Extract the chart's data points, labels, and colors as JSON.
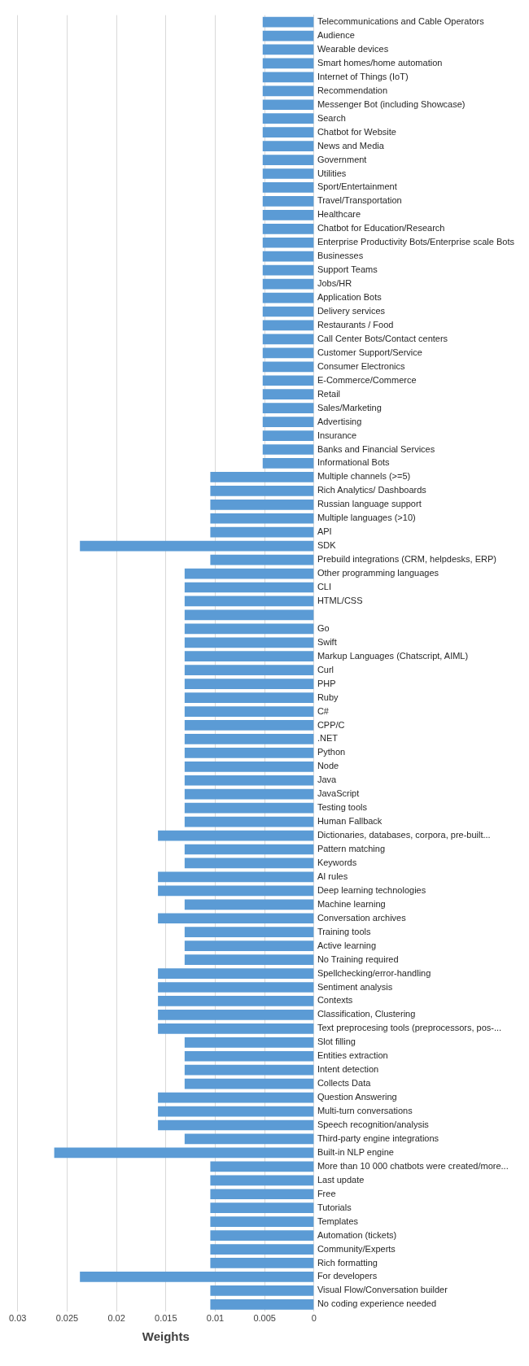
{
  "chart_data": {
    "type": "bar",
    "orientation": "horizontal",
    "xlabel": "Weights",
    "categories": [
      "Telecommunications and Cable Operators",
      "Audience",
      "Wearable devices",
      "Smart homes/home automation",
      "Internet of Things (IoT)",
      "Recommendation",
      "Messenger Bot (including Showcase)",
      "Search",
      "Chatbot for Website",
      "News and Media",
      "Government",
      "Utilities",
      "Sport/Entertainment",
      "Travel/Transportation",
      "Healthcare",
      "Chatbot for Education/Research",
      "Enterprise Productivity Bots/Enterprise scale Bots",
      "Businesses",
      "Support Teams",
      "Jobs/HR",
      "Application Bots",
      "Delivery services",
      "Restaurants / Food",
      "Call Center Bots/Contact centers",
      "Customer Support/Service",
      "Consumer Electronics",
      "E-Commerce/Commerce",
      "Retail",
      "Sales/Marketing",
      "Advertising",
      "Insurance",
      "Banks and Financial Services",
      "Informational Bots",
      "Multiple channels (>=5)",
      "Rich Analytics/ Dashboards",
      "Russian language support",
      "Multiple languages (>10)",
      "API",
      "SDK",
      "Prebuild integrations (CRM, helpdesks, ERP)",
      "Other programming languages",
      "CLI",
      "HTML/CSS",
      null,
      "Go",
      "Swift",
      "Markup Languages (Chatscript, AIML)",
      "Curl",
      "PHP",
      "Ruby",
      "C#",
      "CPP/C",
      ".NET",
      "Python",
      "Node",
      "Java",
      "JavaScript",
      "Testing tools",
      "Human Fallback",
      "Dictionaries, databases, corpora, pre-built...",
      "Pattern matching",
      "Keywords",
      "AI rules",
      "Deep learning technologies",
      "Machine learning",
      "Conversation archives",
      "Training tools",
      "Active learning",
      "No Training required",
      "Spellchecking/error-handling",
      "Sentiment analysis",
      "Contexts",
      "Classification, Clustering",
      "Text preprocesing tools (preprocessors, pos-...",
      "Slot filling",
      "Entities extraction",
      "Intent detection",
      "Collects Data",
      "Question Answering",
      "Multi-turn conversations",
      "Speech recognition/analysis",
      "Third-party engine integrations",
      "Built-in NLP engine",
      "More than 10 000 chatbots were created/more...",
      "Last update",
      "Free",
      "Tutorials",
      "Templates",
      "Automation (tickets)",
      "Community/Experts",
      "Rich formatting",
      "For developers",
      "Visual Flow/Conversation builder",
      "No coding experience needed"
    ],
    "values": [
      0.0052,
      0.0052,
      0.0052,
      0.0052,
      0.0052,
      0.0052,
      0.0052,
      0.0052,
      0.0052,
      0.0052,
      0.0052,
      0.0052,
      0.0052,
      0.0052,
      0.0052,
      0.0052,
      0.0052,
      0.0052,
      0.0052,
      0.0052,
      0.0052,
      0.0052,
      0.0052,
      0.0052,
      0.0052,
      0.0052,
      0.0052,
      0.0052,
      0.0052,
      0.0052,
      0.0052,
      0.0052,
      0.0052,
      0.0105,
      0.0105,
      0.0105,
      0.0105,
      0.0105,
      0.0237,
      0.0105,
      0.0131,
      0.0131,
      0.0131,
      0.0131,
      0.0131,
      0.0131,
      0.0131,
      0.0131,
      0.0131,
      0.0131,
      0.0131,
      0.0131,
      0.0131,
      0.0131,
      0.0131,
      0.0131,
      0.0131,
      0.0131,
      0.0131,
      0.0158,
      0.0131,
      0.0131,
      0.0158,
      0.0158,
      0.0131,
      0.0158,
      0.0131,
      0.0131,
      0.0131,
      0.0158,
      0.0158,
      0.0158,
      0.0158,
      0.0158,
      0.0131,
      0.0131,
      0.0131,
      0.0131,
      0.0158,
      0.0158,
      0.0158,
      0.0131,
      0.0263,
      0.0105,
      0.0105,
      0.0105,
      0.0105,
      0.0105,
      0.0105,
      0.0105,
      0.0105,
      0.0237,
      0.0105,
      0.0105
    ],
    "color": "#5b9bd5",
    "xlim": [
      0.03,
      0
    ],
    "xticks": [
      0.03,
      0.025,
      0.02,
      0.015,
      0.01,
      0.005,
      0
    ],
    "grid": "x",
    "legend": false
  }
}
